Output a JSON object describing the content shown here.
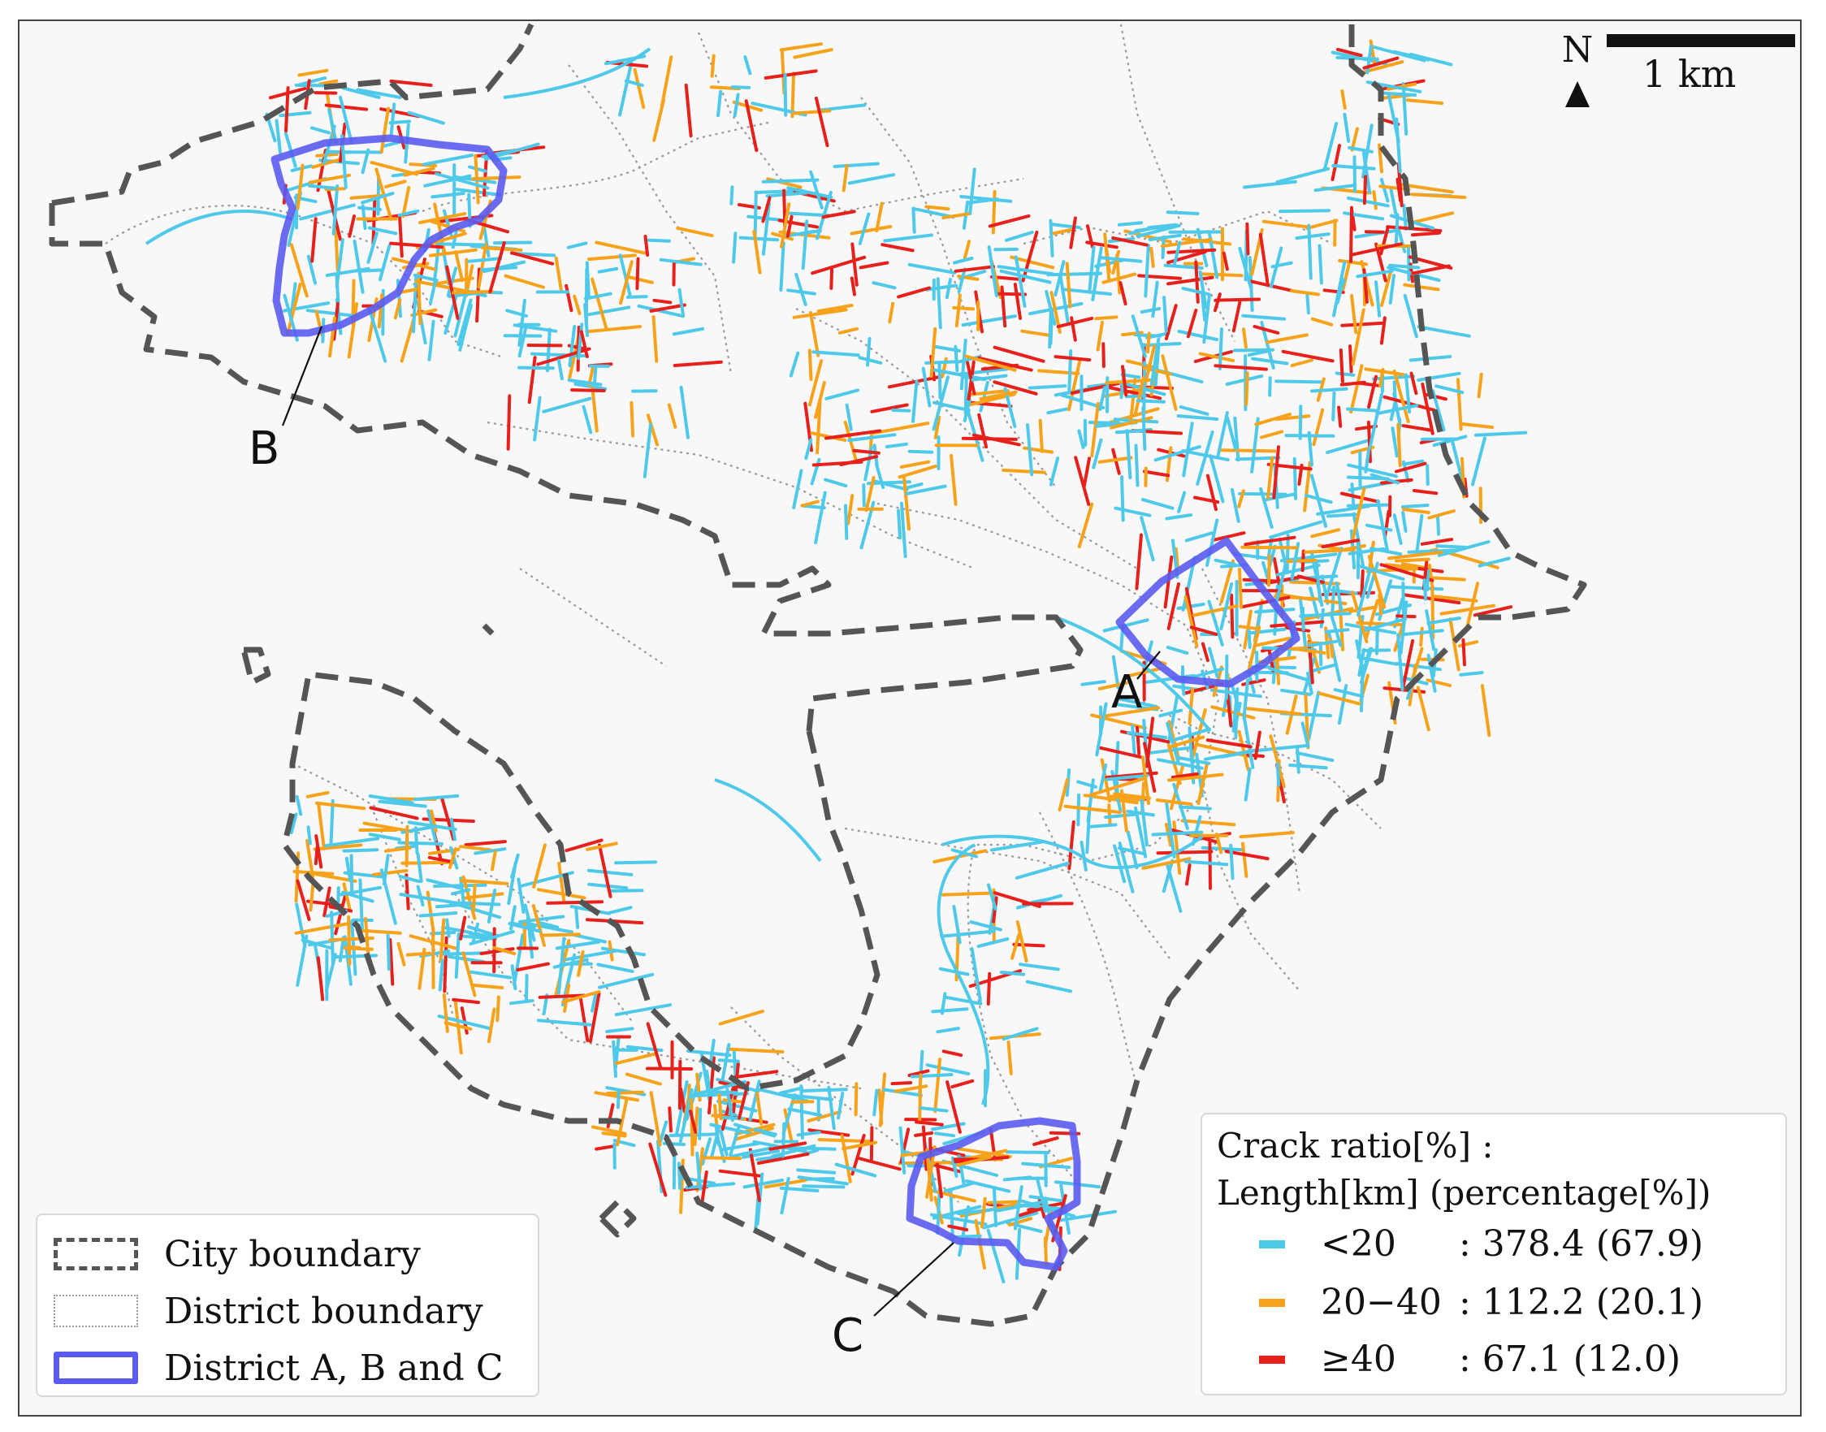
{
  "map": {
    "north_label": "N",
    "scale_label": "1 km",
    "district_labels": {
      "a": "A",
      "b": "B",
      "c": "C"
    },
    "legend": {
      "city_boundary": "City boundary",
      "district_boundary": "District boundary",
      "districts_abc": "District A, B and C"
    },
    "crack_legend": {
      "title_line1": "Crack ratio[%] :",
      "title_line2": "Length[km] (percentage[%])",
      "entries": [
        {
          "category": "<20",
          "value": ": 378.4 (67.9)",
          "color": "#4ec9e9"
        },
        {
          "category": "20−40",
          "value": ": 112.2 (20.1)",
          "color": "#f7a21b"
        },
        {
          "category": "≥40",
          "value": ": 67.1 (12.0)",
          "color": "#e8201c"
        }
      ]
    },
    "colors": {
      "city_boundary": "#555555",
      "district_boundary": "#999999",
      "district_highlight": "#5b5bf0",
      "background": "#f8f8f8"
    }
  }
}
